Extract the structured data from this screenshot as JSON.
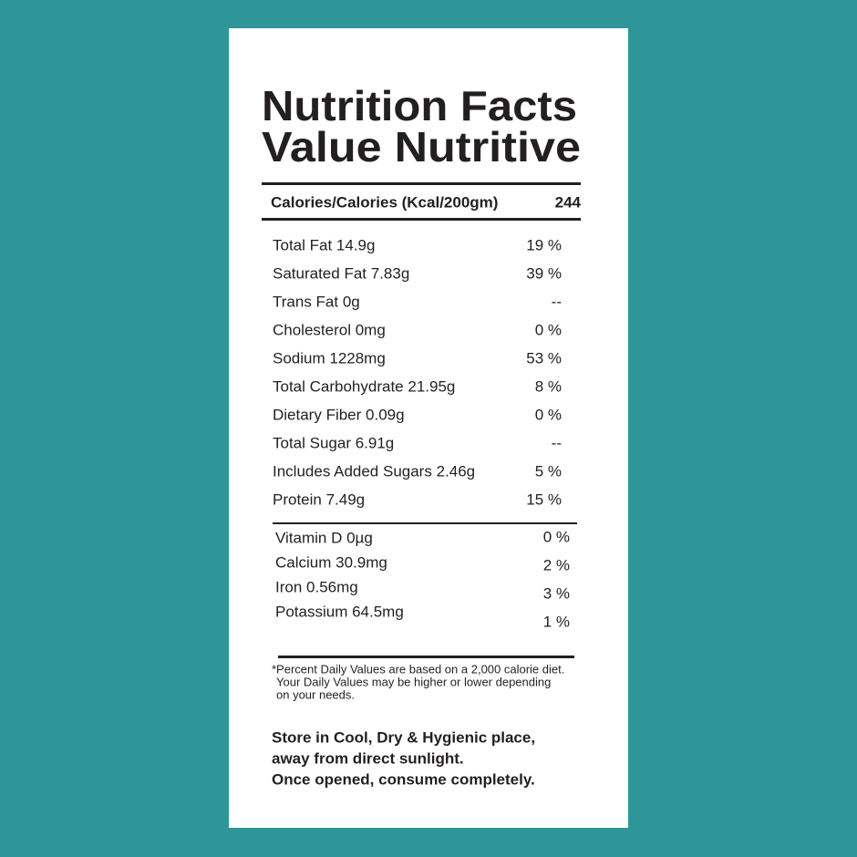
{
  "label": {
    "title": [
      "Nutrition Facts",
      "Value Nutritive"
    ],
    "calories": {
      "label": "Calories/Calories (Kcal/200gm)",
      "value": "244"
    },
    "nutrients": [
      [
        "Total Fat 14.9g",
        "19 %"
      ],
      [
        "Saturated Fat 7.83g",
        "39 %"
      ],
      [
        "Trans Fat 0g",
        "--"
      ],
      [
        "Cholesterol 0mg",
        "0 %"
      ],
      [
        "Sodium 1228mg",
        "53 %"
      ],
      [
        "Total Carbohydrate 21.95g",
        "8 %"
      ],
      [
        "Dietary Fiber 0.09g",
        "0 %"
      ],
      [
        "Total Sugar 6.91g",
        "--"
      ],
      [
        "Includes Added Sugars 2.46g",
        "5 %"
      ],
      [
        "Protein 7.49g",
        "15 %"
      ]
    ],
    "vitamins": [
      [
        "Vitamin D 0µg",
        "0 %"
      ],
      [
        "Calcium 30.9mg",
        "2 %"
      ],
      [
        "Iron 0.56mg",
        "3 %"
      ],
      [
        "Potassium 64.5mg",
        "1 %"
      ]
    ],
    "footnote": [
      "*Percent Daily Values are based on a 2,000 calorie diet.",
      "Your Daily Values may be higher or lower depending",
      "on your needs."
    ],
    "storage": [
      "Store in Cool, Dry & Hygienic place,",
      "away from direct sunlight.",
      "Once opened, consume completely."
    ]
  }
}
